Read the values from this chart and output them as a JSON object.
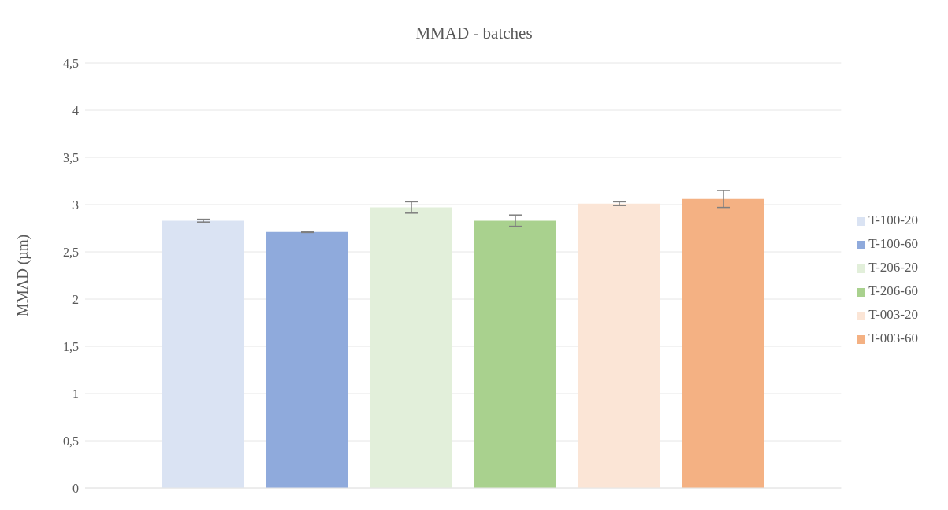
{
  "chart_data": {
    "type": "bar",
    "title": "MMAD - batches",
    "ylabel": "MMAD (µm)",
    "categories": [
      null
    ],
    "series": [
      {
        "name": "T-100-20",
        "color": "#dae3f3",
        "values": [
          2.83
        ],
        "errors": [
          0.015
        ]
      },
      {
        "name": "T-100-60",
        "color": "#8faadc",
        "values": [
          2.71
        ],
        "errors": [
          0.005
        ]
      },
      {
        "name": "T-206-20",
        "color": "#e2efda",
        "values": [
          2.97
        ],
        "errors": [
          0.06
        ]
      },
      {
        "name": "T-206-60",
        "color": "#a9d18e",
        "values": [
          2.83
        ],
        "errors": [
          0.06
        ]
      },
      {
        "name": "T-003-20",
        "color": "#fbe5d6",
        "values": [
          3.01
        ],
        "errors": [
          0.02
        ]
      },
      {
        "name": "T-003-60",
        "color": "#f4b183",
        "values": [
          3.06
        ],
        "errors": [
          0.09
        ]
      }
    ],
    "ylim": [
      0,
      4.5
    ],
    "yticks": [
      0,
      {
        "value": 0.5,
        "label": "0,5"
      },
      1,
      {
        "value": 1.5,
        "label": "1,5"
      },
      2,
      {
        "value": 2.5,
        "label": "2,5"
      },
      3,
      {
        "value": 3.5,
        "label": "3,5"
      },
      4,
      {
        "value": 4.5,
        "label": "4,5"
      }
    ],
    "grid": "y",
    "legend": "right"
  }
}
